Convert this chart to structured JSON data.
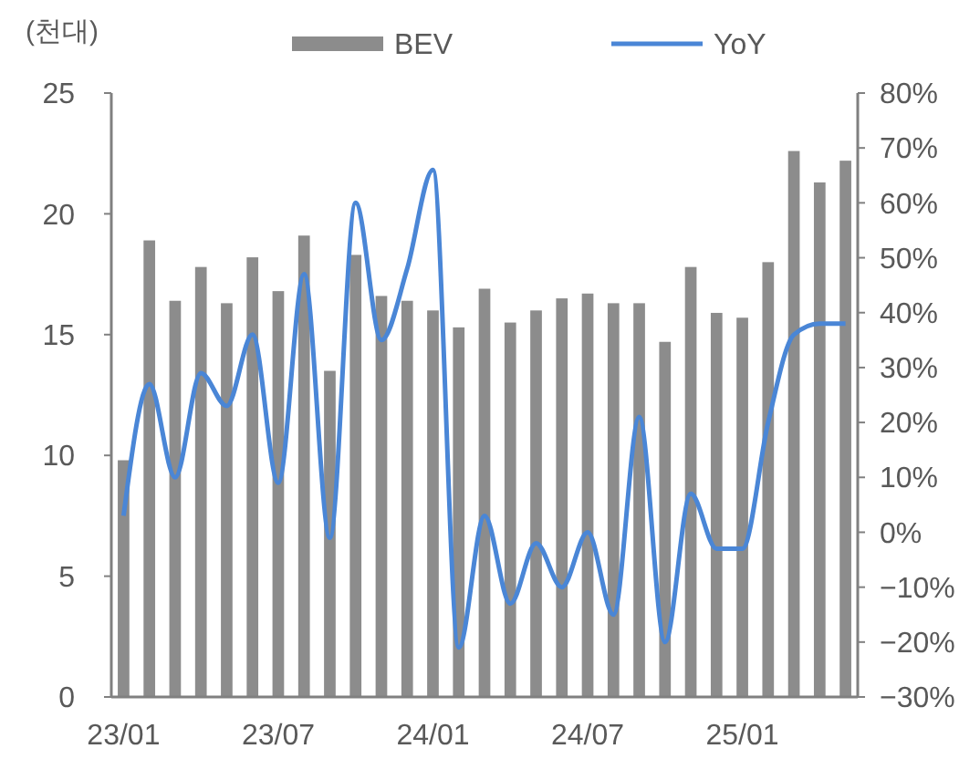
{
  "chart_data": {
    "type": "bar",
    "ylabel": "(천대)",
    "categories": [
      "23/01",
      null,
      null,
      null,
      null,
      null,
      "23/07",
      null,
      null,
      null,
      null,
      null,
      "24/01",
      null,
      null,
      null,
      null,
      null,
      "24/07",
      null,
      null,
      null,
      null,
      null,
      "25/01",
      null,
      null,
      null,
      null
    ],
    "series": [
      {
        "name": "BEV",
        "color": "#8c8c8c",
        "values": [
          9.8,
          18.9,
          16.4,
          17.8,
          16.3,
          18.2,
          16.8,
          19.1,
          13.5,
          18.3,
          16.6,
          16.4,
          16.0,
          15.3,
          16.9,
          15.5,
          16.0,
          16.5,
          16.7,
          16.3,
          16.3,
          14.7,
          17.8,
          15.9,
          15.7,
          18.0,
          22.6,
          21.3,
          22.2
        ]
      },
      {
        "name": "YoY",
        "type": "line",
        "axis": "y2",
        "color": "#4a86d6",
        "values": [
          3,
          27,
          10,
          29,
          23,
          36,
          9,
          47,
          -1,
          60,
          35,
          48,
          66,
          -21,
          3,
          -13,
          -2,
          -10,
          0,
          -15,
          21,
          -20,
          7,
          -3,
          -3,
          20,
          36,
          38,
          38
        ]
      }
    ],
    "ylim": [
      0,
      25
    ],
    "yticks": [
      0,
      5,
      10,
      15,
      20,
      25
    ],
    "y2lim": [
      -30,
      80
    ],
    "y2ticks": [
      {
        "value": -30,
        "label": "−30%"
      },
      {
        "value": -20,
        "label": "−20%"
      },
      {
        "value": -10,
        "label": "−10%"
      },
      {
        "value": 0,
        "label": "0%"
      },
      {
        "value": 10,
        "label": "10%"
      },
      {
        "value": 20,
        "label": "20%"
      },
      {
        "value": 30,
        "label": "30%"
      },
      {
        "value": 40,
        "label": "40%"
      },
      {
        "value": 50,
        "label": "50%"
      },
      {
        "value": 60,
        "label": "60%"
      },
      {
        "value": 70,
        "label": "70%"
      },
      {
        "value": 80,
        "label": "80%"
      }
    ],
    "legend": "top",
    "grid": false
  }
}
